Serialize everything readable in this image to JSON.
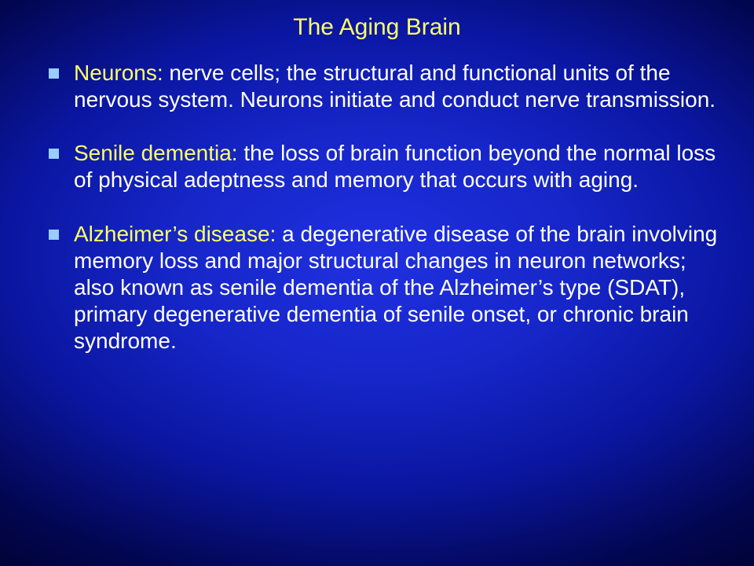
{
  "slide": {
    "title": "The Aging Brain",
    "background": {
      "center_color": "#2030e0",
      "edge_color": "#000028"
    },
    "title_color": "#ffff66",
    "text_color": "#ffffff",
    "term_color": "#ffff66",
    "bullet_marker_color": "#99ccff",
    "title_fontsize": 30,
    "body_fontsize": 28,
    "bullets": [
      {
        "term": "Neurons: ",
        "definition": "nerve cells; the structural and functional units of the nervous system. Neurons initiate and conduct nerve transmission."
      },
      {
        "term": "Senile dementia: ",
        "definition": "the loss of brain function beyond the normal loss of physical adeptness and memory that occurs with aging."
      },
      {
        "term": "Alzheimer’s disease: ",
        "definition": "a degenerative disease of the brain involving memory loss and major structural changes in neuron networks; also known as senile dementia of the Alzheimer’s type (SDAT), primary degenerative dementia of senile onset, or chronic brain syndrome."
      }
    ]
  }
}
